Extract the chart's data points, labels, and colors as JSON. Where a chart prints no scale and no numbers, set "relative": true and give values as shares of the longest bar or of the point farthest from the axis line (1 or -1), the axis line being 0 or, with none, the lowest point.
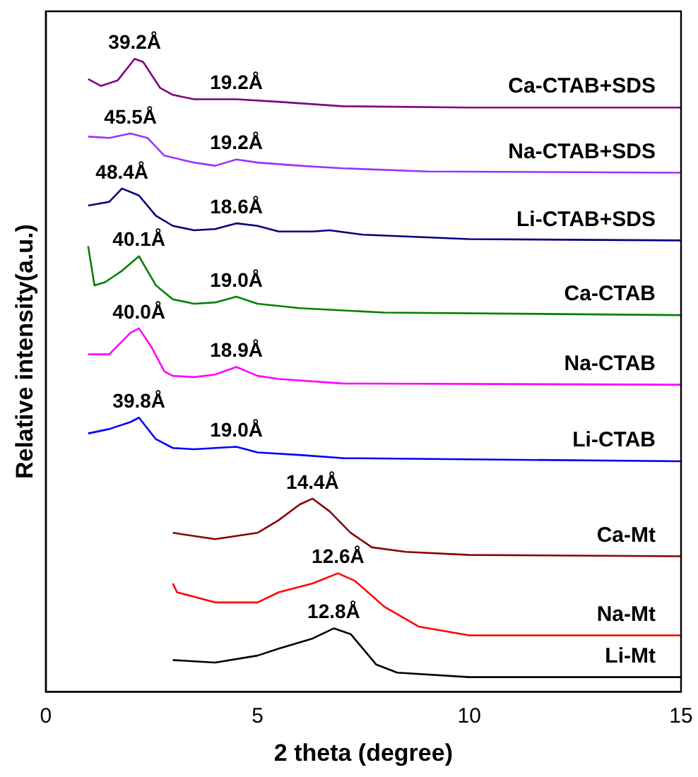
{
  "chart_data": {
    "type": "line",
    "relative": true,
    "xlabel": "2 theta (degree)",
    "ylabel": "Relative intensity(a.u.)",
    "xlim": [
      0,
      15
    ],
    "xticks": [
      0,
      5,
      10,
      15
    ],
    "grid": false,
    "legend": false,
    "marker": "none",
    "line_style": "solid",
    "tick_labels": "x",
    "series": [
      {
        "name": "Ca-CTAB+SDS",
        "color": "#800080",
        "x": [
          1.0,
          1.3,
          1.7,
          2.1,
          2.3,
          2.7,
          3.0,
          3.5,
          4.5,
          5.5,
          7,
          10,
          15
        ],
        "values": [
          0.968,
          0.957,
          0.966,
          1.0,
          0.995,
          0.954,
          0.943,
          0.936,
          0.936,
          0.932,
          0.925,
          0.923,
          0.923
        ]
      },
      {
        "name": "Na-CTAB+SDS",
        "color": "#9933ff",
        "x": [
          1.0,
          1.5,
          2.0,
          2.4,
          2.8,
          3.5,
          4.0,
          4.5,
          5.0,
          6,
          7,
          9,
          15
        ],
        "values": [
          0.877,
          0.875,
          0.882,
          0.875,
          0.847,
          0.836,
          0.831,
          0.841,
          0.836,
          0.831,
          0.827,
          0.822,
          0.82
        ]
      },
      {
        "name": "Li-CTAB+SDS",
        "color": "#000080",
        "x": [
          1.0,
          1.5,
          1.8,
          2.2,
          2.6,
          3.0,
          3.5,
          4.0,
          4.5,
          5.0,
          5.5,
          6.3,
          6.7,
          7.5,
          10,
          15
        ],
        "values": [
          0.768,
          0.774,
          0.795,
          0.784,
          0.752,
          0.736,
          0.729,
          0.731,
          0.74,
          0.736,
          0.727,
          0.727,
          0.729,
          0.722,
          0.715,
          0.713
        ]
      },
      {
        "name": "Ca-CTAB",
        "color": "#008000",
        "x": [
          1.0,
          1.15,
          1.4,
          1.8,
          2.2,
          2.6,
          3.0,
          3.5,
          4.0,
          4.5,
          5.0,
          6,
          8,
          15
        ],
        "values": [
          0.704,
          0.642,
          0.647,
          0.665,
          0.688,
          0.642,
          0.62,
          0.613,
          0.615,
          0.624,
          0.613,
          0.606,
          0.599,
          0.595
        ]
      },
      {
        "name": "Na-CTAB",
        "color": "#ff00ff",
        "x": [
          1.0,
          1.5,
          2.0,
          2.2,
          2.5,
          2.8,
          3.0,
          3.5,
          4.0,
          4.5,
          5.0,
          5.5,
          7,
          15
        ],
        "values": [
          0.533,
          0.533,
          0.567,
          0.574,
          0.544,
          0.506,
          0.499,
          0.497,
          0.501,
          0.513,
          0.499,
          0.494,
          0.487,
          0.485
        ]
      },
      {
        "name": "Li-CTAB",
        "color": "#0000ff",
        "x": [
          1.0,
          1.5,
          2.0,
          2.2,
          2.6,
          3.0,
          3.5,
          4.0,
          4.5,
          5.0,
          6,
          7,
          15
        ],
        "values": [
          0.408,
          0.415,
          0.426,
          0.433,
          0.399,
          0.385,
          0.383,
          0.385,
          0.387,
          0.378,
          0.374,
          0.369,
          0.364
        ]
      },
      {
        "name": "Ca-Mt",
        "color": "#8b0000",
        "x": [
          3.0,
          4.0,
          5.0,
          5.5,
          6.0,
          6.3,
          6.7,
          7.2,
          7.7,
          8.5,
          10,
          15
        ],
        "values": [
          0.251,
          0.241,
          0.251,
          0.271,
          0.296,
          0.305,
          0.285,
          0.251,
          0.228,
          0.221,
          0.216,
          0.214
        ]
      },
      {
        "name": "Na-Mt",
        "color": "#ff0000",
        "x": [
          3.0,
          3.1,
          4.0,
          5.0,
          5.5,
          6.3,
          6.9,
          7.3,
          8.0,
          8.8,
          10,
          12,
          15
        ],
        "values": [
          0.171,
          0.157,
          0.141,
          0.141,
          0.157,
          0.171,
          0.187,
          0.175,
          0.134,
          0.103,
          0.089,
          0.089,
          0.089
        ]
      },
      {
        "name": "Li-Mt",
        "color": "#000000",
        "x": [
          3.0,
          4.0,
          5.0,
          5.5,
          6.3,
          6.8,
          7.2,
          7.8,
          8.3,
          10,
          15
        ],
        "values": [
          0.05,
          0.046,
          0.057,
          0.068,
          0.084,
          0.1,
          0.091,
          0.043,
          0.03,
          0.023,
          0.023
        ]
      }
    ],
    "annotations": [
      {
        "text": "39.2Å",
        "x": 2.1,
        "y": 1.0
      },
      {
        "text": "19.2Å",
        "x": 4.5,
        "y": 0.936
      },
      {
        "text": "45.5Å",
        "x": 2.0,
        "y": 0.882
      },
      {
        "text": "19.2Å",
        "x": 4.5,
        "y": 0.841
      },
      {
        "text": "48.4Å",
        "x": 1.8,
        "y": 0.795
      },
      {
        "text": "18.6Å",
        "x": 4.5,
        "y": 0.74
      },
      {
        "text": "40.1Å",
        "x": 2.2,
        "y": 0.688
      },
      {
        "text": "19.0Å",
        "x": 4.5,
        "y": 0.624
      },
      {
        "text": "40.0Å",
        "x": 2.2,
        "y": 0.574
      },
      {
        "text": "18.9Å",
        "x": 4.5,
        "y": 0.513
      },
      {
        "text": "39.8Å",
        "x": 2.2,
        "y": 0.433
      },
      {
        "text": "19.0Å",
        "x": 4.5,
        "y": 0.387
      },
      {
        "text": "14.4Å",
        "x": 6.3,
        "y": 0.305
      },
      {
        "text": "12.6Å",
        "x": 6.9,
        "y": 0.187
      },
      {
        "text": "12.8Å",
        "x": 6.8,
        "y": 0.1
      }
    ]
  }
}
